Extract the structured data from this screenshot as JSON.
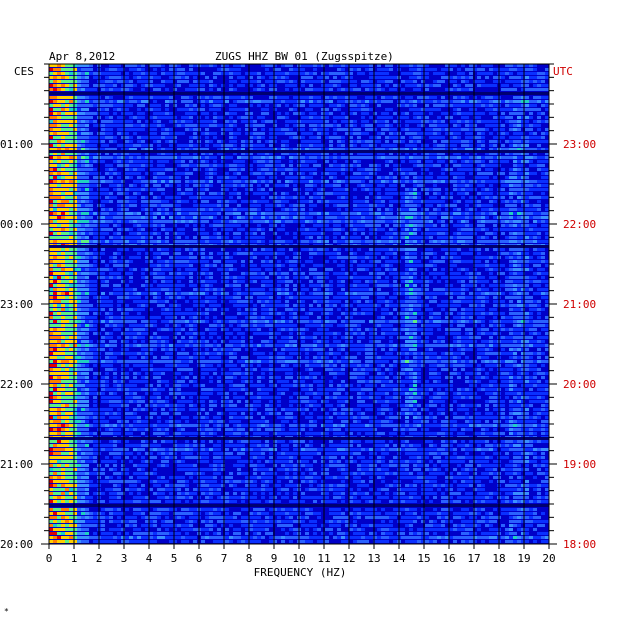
{
  "header": {
    "date": "Apr 8,2012",
    "station": "ZUGS HHZ BW 01 (Zugsspitze)"
  },
  "chart_data": {
    "type": "heatmap",
    "title": "ZUGS HHZ BW 01 (Zugsspitze)",
    "xlabel": "FREQUENCY (HZ)",
    "xlim": [
      0,
      20
    ],
    "x_ticks": [
      "0",
      "1",
      "2",
      "3",
      "4",
      "5",
      "6",
      "7",
      "8",
      "9",
      "10",
      "11",
      "12",
      "13",
      "14",
      "15",
      "16",
      "17",
      "18",
      "19",
      "20"
    ],
    "left_axis": {
      "label": "CES",
      "ticks": [
        "01:00",
        "00:00",
        "23:00",
        "22:00",
        "21:00",
        "20:00"
      ]
    },
    "right_axis": {
      "label": "UTC",
      "ticks": [
        "23:00",
        "22:00",
        "21:00",
        "20:00",
        "19:00",
        "18:00"
      ]
    },
    "colors": {
      "background_low": "#0000c8",
      "mid": "#2a62ff",
      "low_freq_band": "#20d0c0",
      "high": "#ffd000",
      "peak": "#e00000",
      "utc_label": "#d00000"
    },
    "grid": true
  }
}
